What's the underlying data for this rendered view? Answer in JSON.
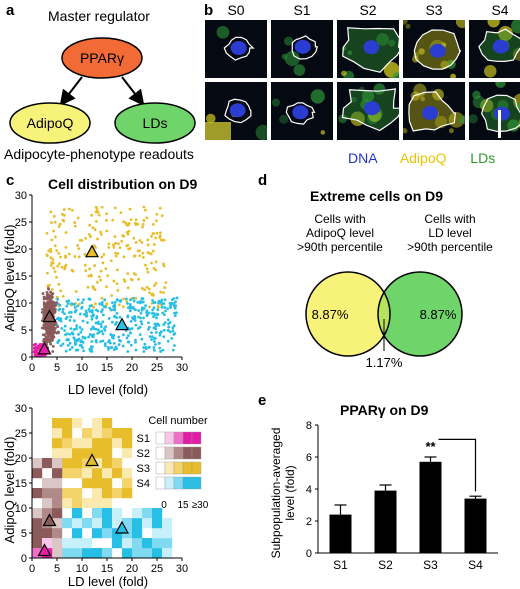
{
  "panel_a": {
    "label": "a",
    "master_regulator": "Master regulator",
    "pparg_node": "PPARγ",
    "adipoq_node": "AdipoQ",
    "lds_node": "LDs",
    "readouts": "Adipocyte-phenotype readouts",
    "colors": {
      "pparg": "#f26a35",
      "adipoq": "#f7f27a",
      "lds": "#6fd46a"
    }
  },
  "panel_b": {
    "label": "b",
    "columns": [
      "S0",
      "S1",
      "S2",
      "S3",
      "S4"
    ],
    "legend": [
      {
        "text": "DNA",
        "color": "#2233cc"
      },
      {
        "text": "AdipoQ",
        "color": "#e6c400"
      },
      {
        "text": "LDs",
        "color": "#2a9a2a"
      }
    ]
  },
  "panel_c": {
    "label": "c",
    "title": "Cell distribution on D9",
    "xlabel": "LD level (fold)",
    "ylabel": "AdipoQ level (fold)",
    "legend_title": "Cell number",
    "legend_rows": [
      "S1",
      "S2",
      "S3",
      "S4"
    ],
    "legend_ticks": [
      "0",
      "15",
      "≥30"
    ],
    "colors": {
      "S1": "#ea1ea8",
      "S2": "#8b5a5a",
      "S3": "#e8bd2c",
      "S4": "#28bfe6"
    }
  },
  "panel_d": {
    "label": "d",
    "title": "Extreme cells on D9",
    "left_caption": [
      "Cells with",
      "AdipoQ level",
      ">90th percentile"
    ],
    "right_caption": [
      "Cells with",
      "LD level",
      ">90th percentile"
    ],
    "left_value": "8.87%",
    "right_value": "8.87%",
    "overlap_value": "1.17%",
    "colors": {
      "left": "#f7f27a",
      "right": "#6fd46a",
      "overlap": "#b7e35a"
    }
  },
  "panel_e": {
    "label": "e",
    "title": "PPARγ on D9",
    "significance": "**"
  },
  "chart_data": [
    {
      "type": "scatter",
      "title": "Cell distribution on D9",
      "xlabel": "LD level (fold)",
      "ylabel": "AdipoQ level (fold)",
      "xlim": [
        0,
        30
      ],
      "ylim": [
        0,
        30
      ],
      "xticks": [
        0,
        5,
        10,
        15,
        20,
        25,
        30
      ],
      "yticks": [
        0,
        5,
        10,
        15,
        20,
        25,
        30
      ],
      "series": [
        {
          "name": "S1",
          "centroid": [
            2.5,
            1.5
          ],
          "spread": [
            1.5,
            1.5
          ]
        },
        {
          "name": "S2",
          "centroid": [
            3.5,
            7.5
          ],
          "spread": [
            4,
            14
          ]
        },
        {
          "name": "S3",
          "centroid": [
            12,
            19.5
          ],
          "spread": [
            15,
            18
          ]
        },
        {
          "name": "S4",
          "centroid": [
            18,
            6
          ],
          "spread": [
            24,
            10
          ]
        }
      ],
      "markers": [
        {
          "x": 2.5,
          "y": 1.5
        },
        {
          "x": 3.5,
          "y": 7.5
        },
        {
          "x": 12,
          "y": 19.5
        },
        {
          "x": 18,
          "y": 6
        }
      ]
    },
    {
      "type": "heatmap",
      "xlabel": "LD level (fold)",
      "ylabel": "AdipoQ level (fold)",
      "xlim": [
        0,
        30
      ],
      "ylim": [
        0,
        30
      ],
      "xticks": [
        0,
        5,
        10,
        15,
        20,
        25,
        30
      ],
      "yticks": [
        0,
        5,
        10,
        15,
        20,
        25,
        30
      ],
      "legend_title": "Cell number",
      "legend_ticks": [
        "0",
        "15",
        "≥30"
      ],
      "series": [
        "S1",
        "S2",
        "S3",
        "S4"
      ],
      "markers": [
        {
          "x": 2.5,
          "y": 1.5
        },
        {
          "x": 3.5,
          "y": 7.5
        },
        {
          "x": 12,
          "y": 19.5
        },
        {
          "x": 18,
          "y": 6
        }
      ]
    },
    {
      "type": "bar",
      "title": "PPARγ on D9",
      "ylabel": "Subpopulation-averaged level (fold)",
      "categories": [
        "S1",
        "S2",
        "S3",
        "S4"
      ],
      "values": [
        2.4,
        3.9,
        5.7,
        3.4
      ],
      "errors": [
        0.6,
        0.35,
        0.3,
        0.15
      ],
      "ylim": [
        0,
        8
      ],
      "yticks": [
        0,
        2,
        4,
        6,
        8
      ],
      "significance": {
        "between": [
          "S3",
          "S4"
        ],
        "label": "**"
      }
    }
  ]
}
